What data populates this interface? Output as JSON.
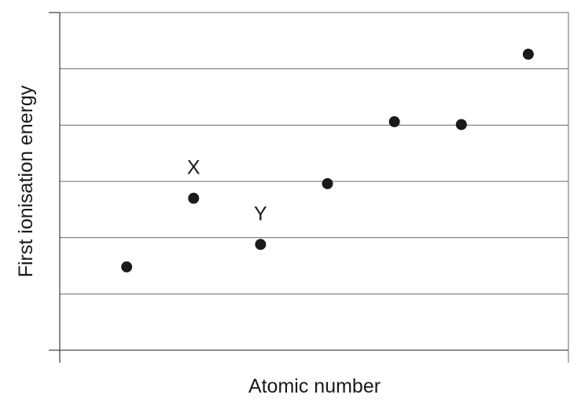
{
  "chart_data": {
    "type": "scatter",
    "title": "",
    "xlabel": "Atomic number",
    "ylabel": "First ionisation energy",
    "x_ticks_shown": false,
    "y_ticks_shown": false,
    "grid": "horizontal",
    "xlim": [
      0,
      7.6
    ],
    "ylim": [
      0,
      6
    ],
    "points": [
      {
        "x": 1,
        "y": 1.48,
        "label": ""
      },
      {
        "x": 2,
        "y": 2.7,
        "label": "X"
      },
      {
        "x": 3,
        "y": 1.88,
        "label": "Y"
      },
      {
        "x": 4,
        "y": 2.96,
        "label": ""
      },
      {
        "x": 5,
        "y": 4.06,
        "label": ""
      },
      {
        "x": 6,
        "y": 4.01,
        "label": ""
      },
      {
        "x": 7,
        "y": 5.26,
        "label": ""
      }
    ],
    "colors": {
      "points": "#1a1a1a",
      "grid": "#6a6a6a",
      "axes": "#4a4a4a",
      "text": "#1a1a1a"
    }
  }
}
